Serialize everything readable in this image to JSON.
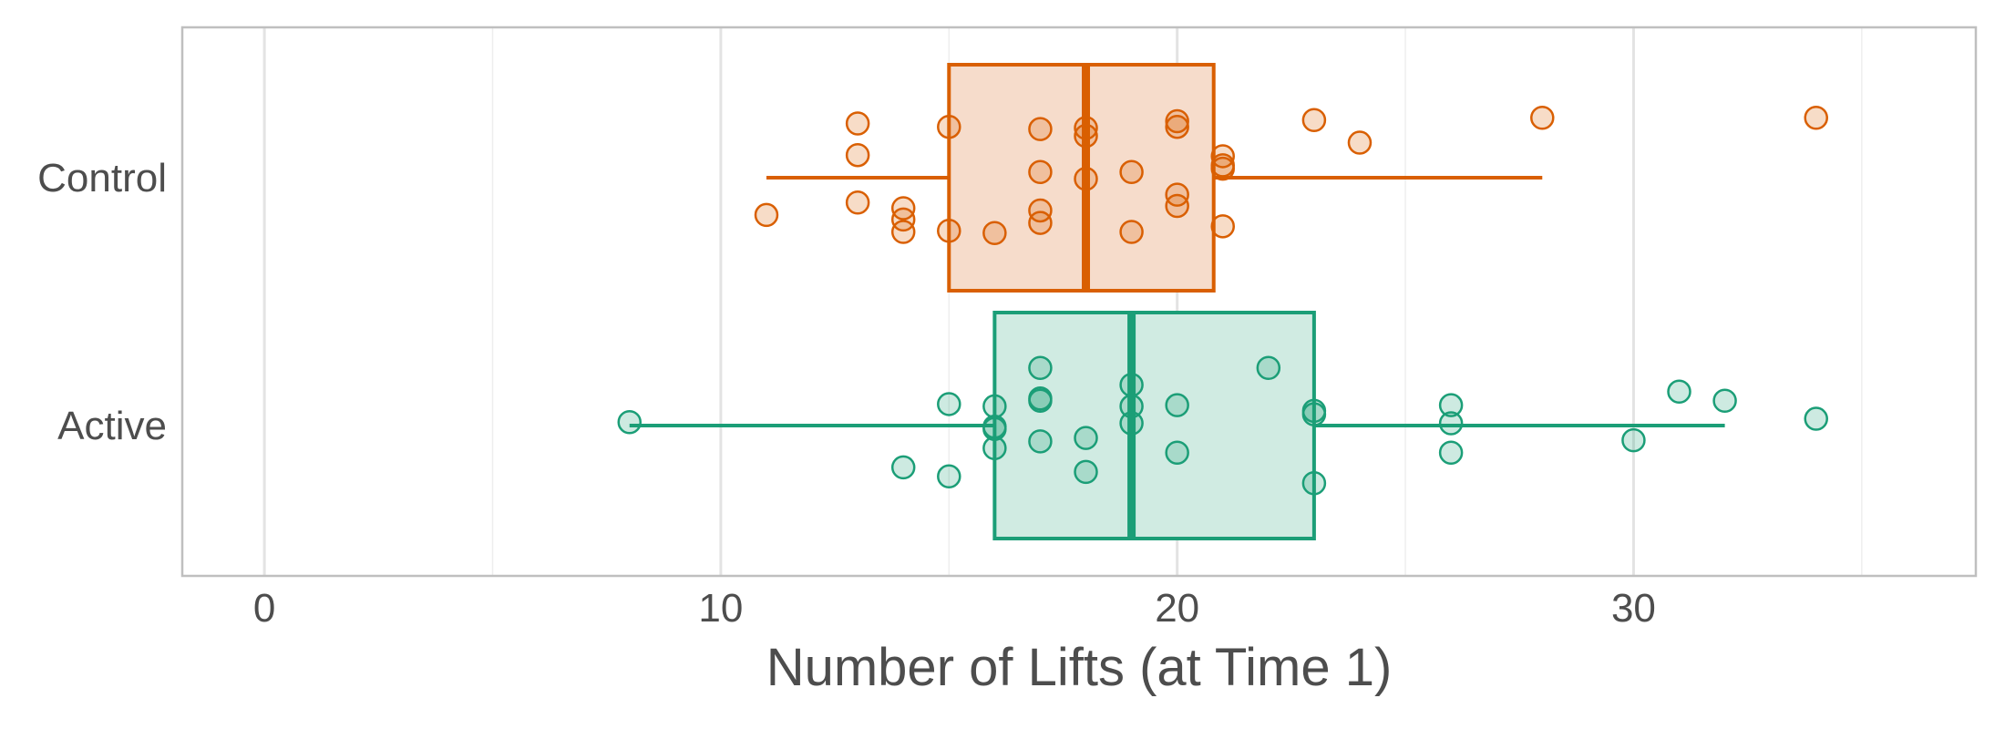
{
  "chart_data": {
    "type": "boxplot",
    "orientation": "horizontal",
    "xlabel": "Number of Lifts (at Time 1)",
    "ylabel": "",
    "xlim": [
      -1.8,
      37.5
    ],
    "x_ticks": [
      0,
      10,
      20,
      30
    ],
    "x_tick_labels": [
      "0",
      "10",
      "20",
      "30"
    ],
    "x_minor_gridlines": [
      5,
      15,
      25,
      35
    ],
    "grid": true,
    "legend": "none",
    "categories": [
      "Control",
      "Active"
    ],
    "series": [
      {
        "name": "Control",
        "color": "#d95f02",
        "fill": "#f6dccb",
        "box": {
          "whisker_low": 11,
          "q1": 15,
          "median": 18,
          "q3": 20.8,
          "whisker_high": 28
        },
        "points": [
          {
            "x": 11,
            "jitter": -0.33
          },
          {
            "x": 13,
            "jitter": 0.48
          },
          {
            "x": 13,
            "jitter": 0.2
          },
          {
            "x": 13,
            "jitter": -0.22
          },
          {
            "x": 14,
            "jitter": -0.27
          },
          {
            "x": 14,
            "jitter": -0.37
          },
          {
            "x": 14,
            "jitter": -0.48
          },
          {
            "x": 15,
            "jitter": 0.45
          },
          {
            "x": 15,
            "jitter": -0.47
          },
          {
            "x": 16,
            "jitter": -0.49
          },
          {
            "x": 17,
            "jitter": 0.43
          },
          {
            "x": 17,
            "jitter": 0.05
          },
          {
            "x": 17,
            "jitter": -0.29
          },
          {
            "x": 17,
            "jitter": -0.4
          },
          {
            "x": 18,
            "jitter": 0.44
          },
          {
            "x": 18,
            "jitter": 0.37
          },
          {
            "x": 18,
            "jitter": -0.01
          },
          {
            "x": 19,
            "jitter": 0.05
          },
          {
            "x": 19,
            "jitter": -0.48
          },
          {
            "x": 20,
            "jitter": 0.5
          },
          {
            "x": 20,
            "jitter": 0.45
          },
          {
            "x": 20,
            "jitter": -0.15
          },
          {
            "x": 20,
            "jitter": -0.25
          },
          {
            "x": 21,
            "jitter": 0.19
          },
          {
            "x": 21,
            "jitter": 0.11
          },
          {
            "x": 21,
            "jitter": 0.08
          },
          {
            "x": 21,
            "jitter": -0.43
          },
          {
            "x": 23,
            "jitter": 0.51
          },
          {
            "x": 24,
            "jitter": 0.31
          },
          {
            "x": 28,
            "jitter": 0.53
          },
          {
            "x": 34,
            "jitter": 0.53
          }
        ]
      },
      {
        "name": "Active",
        "color": "#1b9e77",
        "fill": "#d0ebe2",
        "box": {
          "whisker_low": 8,
          "q1": 16,
          "median": 19,
          "q3": 23,
          "whisker_high": 32
        },
        "points": [
          {
            "x": 8,
            "jitter": 0.03
          },
          {
            "x": 14,
            "jitter": -0.37
          },
          {
            "x": 15,
            "jitter": 0.19
          },
          {
            "x": 15,
            "jitter": -0.45
          },
          {
            "x": 16,
            "jitter": 0.17
          },
          {
            "x": 16,
            "jitter": -0.01
          },
          {
            "x": 16,
            "jitter": -0.03
          },
          {
            "x": 16,
            "jitter": -0.2
          },
          {
            "x": 17,
            "jitter": 0.51
          },
          {
            "x": 17,
            "jitter": 0.24
          },
          {
            "x": 17,
            "jitter": 0.22
          },
          {
            "x": 17,
            "jitter": -0.14
          },
          {
            "x": 18,
            "jitter": -0.11
          },
          {
            "x": 18,
            "jitter": -0.41
          },
          {
            "x": 19,
            "jitter": 0.36
          },
          {
            "x": 19,
            "jitter": 0.17
          },
          {
            "x": 19,
            "jitter": 0.02
          },
          {
            "x": 20,
            "jitter": 0.18
          },
          {
            "x": 20,
            "jitter": -0.24
          },
          {
            "x": 22,
            "jitter": 0.51
          },
          {
            "x": 23,
            "jitter": 0.13
          },
          {
            "x": 23,
            "jitter": 0.1
          },
          {
            "x": 23,
            "jitter": -0.51
          },
          {
            "x": 26,
            "jitter": 0.18
          },
          {
            "x": 26,
            "jitter": 0.02
          },
          {
            "x": 26,
            "jitter": -0.24
          },
          {
            "x": 30,
            "jitter": -0.13
          },
          {
            "x": 31,
            "jitter": 0.3
          },
          {
            "x": 32,
            "jitter": 0.22
          },
          {
            "x": 34,
            "jitter": 0.06
          }
        ]
      }
    ]
  },
  "style": {
    "panel_border_color": "#bfbfbf",
    "major_grid_color": "#e3e3e3",
    "minor_grid_color": "#eeeeee",
    "text_color": "#4d4d4d"
  }
}
